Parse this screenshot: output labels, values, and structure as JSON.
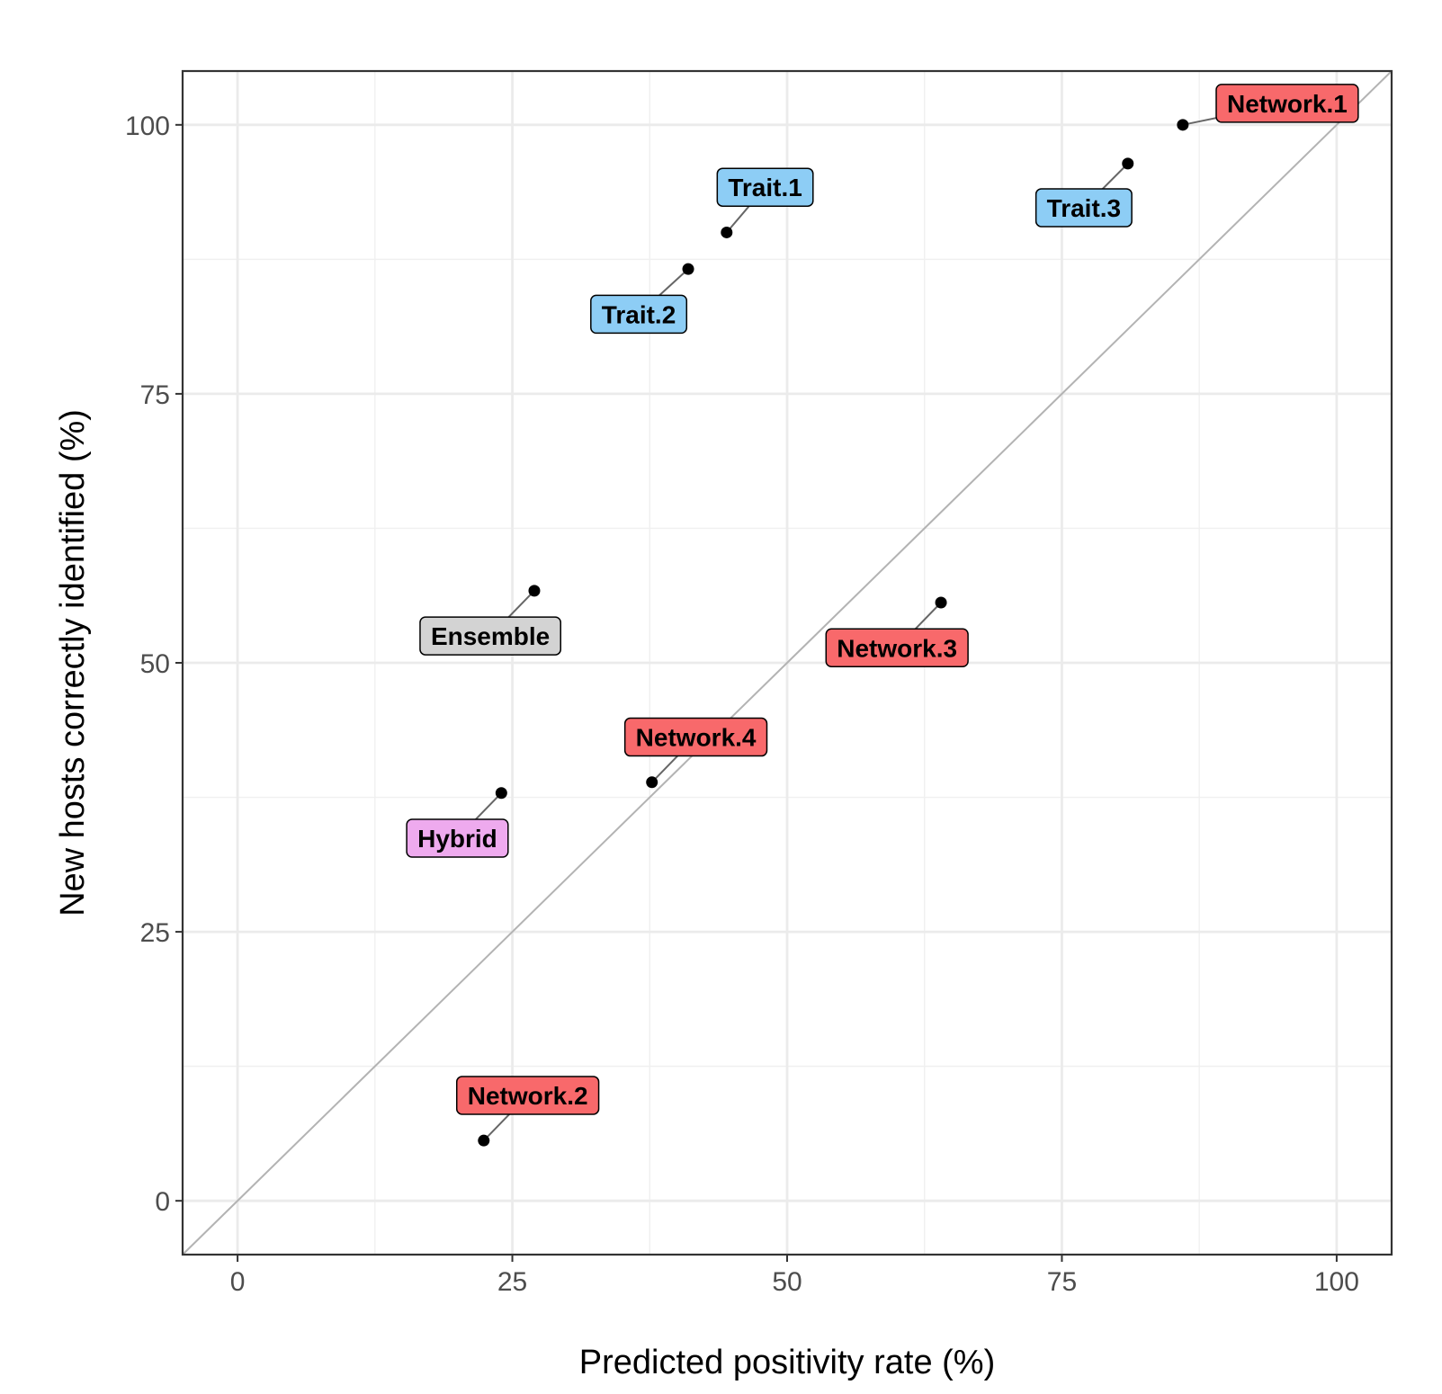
{
  "chart_data": {
    "type": "scatter",
    "xlabel": "Predicted positivity rate (%)",
    "ylabel": "New hosts correctly identified (%)",
    "xlim": [
      -5,
      105
    ],
    "ylim": [
      -5,
      105
    ],
    "x_ticks": [
      0,
      25,
      50,
      75,
      100
    ],
    "y_ticks": [
      0,
      25,
      50,
      75,
      100
    ],
    "x_tick_labels": [
      "0",
      "25",
      "50",
      "75",
      "100"
    ],
    "y_tick_labels": [
      "0",
      "25",
      "50",
      "75",
      "100"
    ],
    "grid": true,
    "reference_line": "y = x",
    "colors": {
      "Network": "#f8696b",
      "Trait": "#8dcdf5",
      "Ensemble": "#d3d3d3",
      "Hybrid": "#eeaaee"
    },
    "points": [
      {
        "label": "Network.1",
        "group": "Network",
        "x": 86.0,
        "y": 100.0,
        "label_x": 95.5,
        "label_y": 102.0
      },
      {
        "label": "Trait.1",
        "group": "Trait",
        "x": 44.5,
        "y": 90.0,
        "label_x": 48.0,
        "label_y": 94.2
      },
      {
        "label": "Trait.2",
        "group": "Trait",
        "x": 41.0,
        "y": 86.6,
        "label_x": 36.5,
        "label_y": 82.4
      },
      {
        "label": "Trait.3",
        "group": "Trait",
        "x": 81.0,
        "y": 96.4,
        "label_x": 77.0,
        "label_y": 92.3
      },
      {
        "label": "Ensemble",
        "group": "Ensemble",
        "x": 27.0,
        "y": 56.7,
        "label_x": 23.0,
        "label_y": 52.5
      },
      {
        "label": "Network.3",
        "group": "Network",
        "x": 64.0,
        "y": 55.6,
        "label_x": 60.0,
        "label_y": 51.4
      },
      {
        "label": "Network.4",
        "group": "Network",
        "x": 37.7,
        "y": 38.9,
        "label_x": 41.7,
        "label_y": 43.1
      },
      {
        "label": "Hybrid",
        "group": "Hybrid",
        "x": 24.0,
        "y": 37.9,
        "label_x": 20.0,
        "label_y": 33.7
      },
      {
        "label": "Network.2",
        "group": "Network",
        "x": 22.4,
        "y": 5.6,
        "label_x": 26.4,
        "label_y": 9.8
      }
    ]
  }
}
